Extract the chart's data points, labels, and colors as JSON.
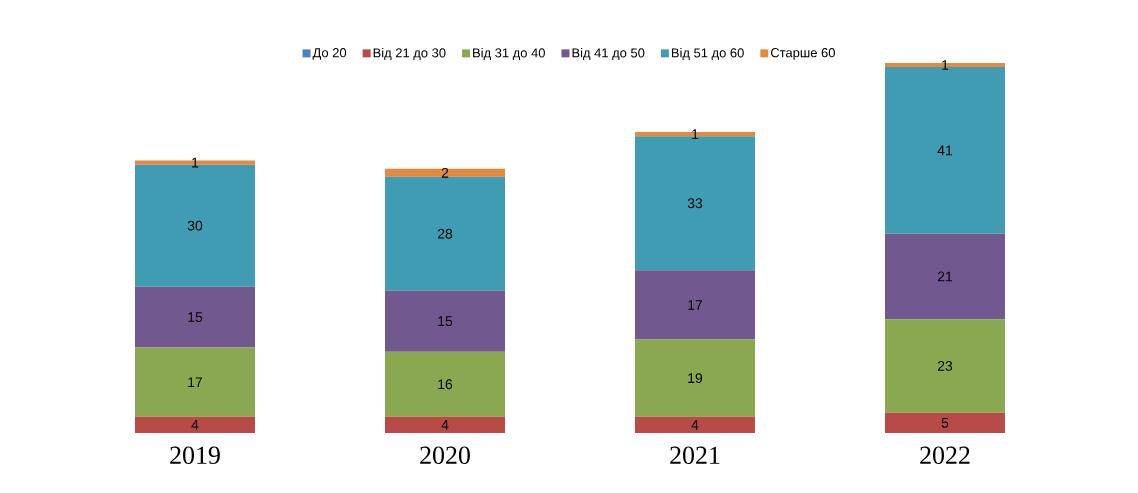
{
  "chart_data": {
    "type": "bar",
    "stacked": true,
    "legend": "top",
    "categories": [
      "2019",
      "2020",
      "2021",
      "2022"
    ],
    "series": [
      {
        "name": "До 20",
        "color": "#4f81bd",
        "values": [
          0,
          0,
          0,
          0
        ],
        "value_labels": [
          null,
          null,
          null,
          null
        ]
      },
      {
        "name": "Від 21 до 30",
        "color": "#b84a47",
        "values": [
          4,
          4,
          4,
          5
        ],
        "value_labels": [
          "4",
          "4",
          "4",
          "5"
        ]
      },
      {
        "name": "Від 31 до 40",
        "color": "#8aa84f",
        "values": [
          17,
          16,
          19,
          23
        ],
        "value_labels": [
          "17",
          "16",
          "19",
          "23"
        ]
      },
      {
        "name": "Від 41 до 50",
        "color": "#71588f",
        "values": [
          15,
          15,
          17,
          21
        ],
        "value_labels": [
          "15",
          "15",
          "17",
          "21"
        ]
      },
      {
        "name": "Від 51 до 60",
        "color": "#409cb2",
        "values": [
          30,
          28,
          33,
          41
        ],
        "value_labels": [
          "30",
          "28",
          "33",
          "41"
        ]
      },
      {
        "name": "Старше 60",
        "color": "#e58a3c",
        "values": [
          1,
          2,
          1,
          1
        ],
        "value_labels": [
          "1",
          "2",
          "1",
          "1"
        ]
      }
    ]
  }
}
